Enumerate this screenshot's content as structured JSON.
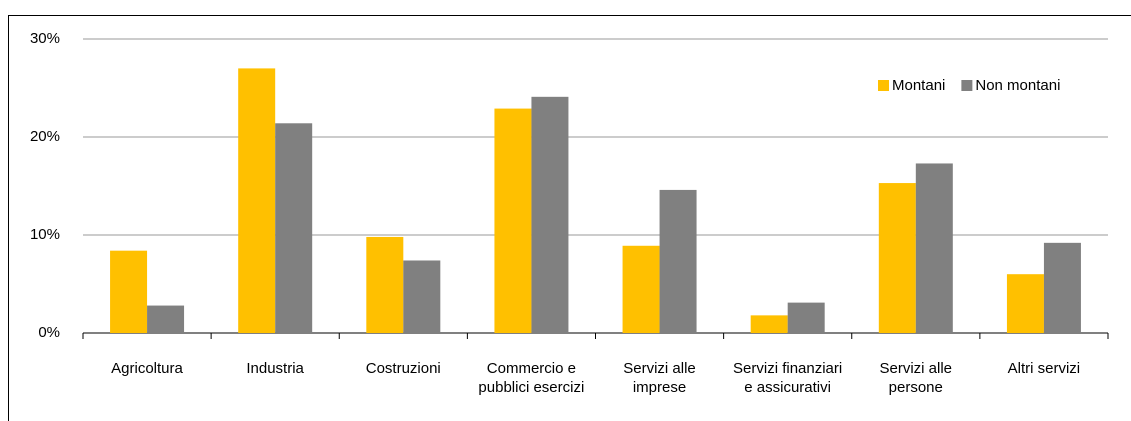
{
  "chart_data": {
    "type": "bar",
    "categories": [
      "Agricoltura",
      "Industria",
      "Costruzioni",
      "Commercio e\npubblici esercizi",
      "Servizi alle\nimprese",
      "Servizi finanziari\ne assicurativi",
      "Servizi alle\npersone",
      "Altri servizi"
    ],
    "series": [
      {
        "name": "Montani",
        "color": "#ffc000",
        "values": [
          8.4,
          27.0,
          9.8,
          22.9,
          8.9,
          1.8,
          15.3,
          6.0
        ]
      },
      {
        "name": "Non montani",
        "color": "#808080",
        "values": [
          2.8,
          21.4,
          7.4,
          24.1,
          14.6,
          3.1,
          17.3,
          9.2
        ]
      }
    ],
    "ylim": [
      0,
      30
    ],
    "yticks": [
      {
        "value": 0,
        "label": "0%"
      },
      {
        "value": 10,
        "label": "10%"
      },
      {
        "value": 20,
        "label": "20%"
      },
      {
        "value": 30,
        "label": "30%"
      }
    ],
    "grid": true,
    "legend": "upper right"
  }
}
